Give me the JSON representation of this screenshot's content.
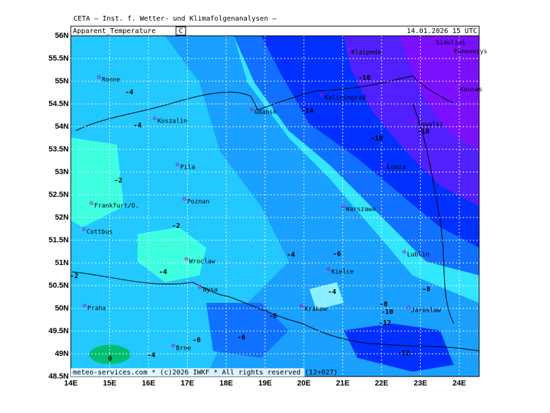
{
  "header": "CETA — Inst. f. Wetter- und Klimafolgenanalysen —",
  "map": {
    "title": "Apparent_Temperature",
    "unit": "C",
    "valid_time": "14.01.2026 15 UTC",
    "footer": "meteo-services.com * (c)2026 IWKF * All rights reserved (12+027)",
    "xlim": [
      14,
      24.6
    ],
    "ylim": [
      48.5,
      56
    ],
    "xticks": [
      {
        "value": 14,
        "label": "14E"
      },
      {
        "value": 15,
        "label": "15E"
      },
      {
        "value": 16,
        "label": "16E"
      },
      {
        "value": 17,
        "label": "17E"
      },
      {
        "value": 18,
        "label": "18E"
      },
      {
        "value": 19,
        "label": "19E"
      },
      {
        "value": 20,
        "label": "20E"
      },
      {
        "value": 21,
        "label": "21E"
      },
      {
        "value": 22,
        "label": "22E"
      },
      {
        "value": 23,
        "label": "23E"
      },
      {
        "value": 24,
        "label": "24E"
      }
    ],
    "yticks": [
      {
        "value": 48.5,
        "label": "48.5N"
      },
      {
        "value": 49,
        "label": "49N"
      },
      {
        "value": 49.5,
        "label": "49.5N"
      },
      {
        "value": 50,
        "label": "50N"
      },
      {
        "value": 50.5,
        "label": "50.5N"
      },
      {
        "value": 51,
        "label": "51N"
      },
      {
        "value": 51.5,
        "label": "51.5N"
      },
      {
        "value": 52,
        "label": "52N"
      },
      {
        "value": 52.5,
        "label": "52.5N"
      },
      {
        "value": 53,
        "label": "53N"
      },
      {
        "value": 53.5,
        "label": "53.5N"
      },
      {
        "value": 54,
        "label": "54N"
      },
      {
        "value": 54.5,
        "label": "54.5N"
      },
      {
        "value": 55,
        "label": "55N"
      },
      {
        "value": 55.5,
        "label": "55.5N"
      },
      {
        "value": 56,
        "label": "56N"
      }
    ],
    "cities": [
      "Ronne",
      "Koszalin",
      "Pila",
      "Poznan",
      "Frankfurt/O.",
      "Cottbus",
      "Wroclaw",
      "Nysa",
      "Praha",
      "Brno",
      "Krakow",
      "Kielce",
      "Warszawa",
      "Lublin",
      "Jaroslaw",
      "Lomza",
      "Kaliningrad",
      "Gdansk",
      "Klaipeda",
      "Siauliai",
      "Panevezys",
      "Kaunas",
      "Suwalki"
    ],
    "contour_labels": [
      -4,
      -4,
      -2,
      -2,
      -4,
      -4,
      -6,
      -4,
      -6,
      -6,
      -6,
      -4,
      0,
      -8,
      -8,
      -10,
      -12,
      -12,
      -14,
      -16,
      -18,
      -18,
      -2
    ]
  }
}
